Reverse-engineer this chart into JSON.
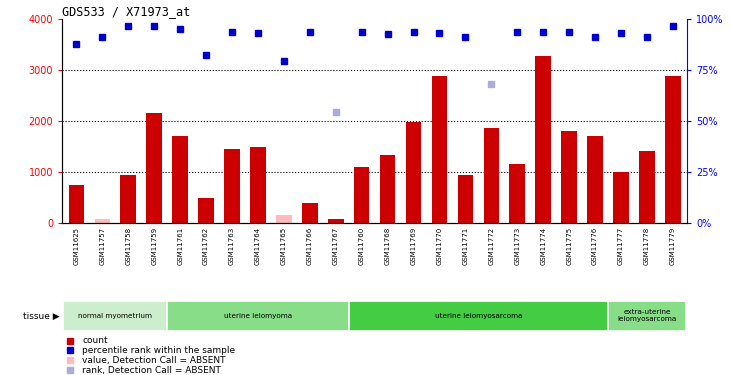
{
  "title": "GDS533 / X71973_at",
  "samples": [
    "GSM11625",
    "GSM11757",
    "GSM11758",
    "GSM11759",
    "GSM11761",
    "GSM11762",
    "GSM11763",
    "GSM11764",
    "GSM11765",
    "GSM11766",
    "GSM11767",
    "GSM11760",
    "GSM11768",
    "GSM11769",
    "GSM11770",
    "GSM11771",
    "GSM11772",
    "GSM11773",
    "GSM11774",
    "GSM11775",
    "GSM11776",
    "GSM11777",
    "GSM11778",
    "GSM11779"
  ],
  "counts": [
    750,
    80,
    950,
    2160,
    1700,
    500,
    1450,
    1490,
    160,
    390,
    80,
    1090,
    1340,
    1970,
    2870,
    950,
    1870,
    1160,
    3270,
    1810,
    1710,
    1000,
    1420,
    2870
  ],
  "absent_count_indices": [
    1,
    8
  ],
  "ranks": [
    3510,
    3640,
    3850,
    3850,
    3790,
    3300,
    3750,
    3730,
    3170,
    3750,
    2170,
    3750,
    3700,
    3750,
    3730,
    3640,
    2720,
    3750,
    3750,
    3750,
    3640,
    3730,
    3640,
    3850
  ],
  "absent_rank_indices": [
    10,
    16
  ],
  "ylim_left": [
    0,
    4000
  ],
  "ylim_right": [
    0,
    100
  ],
  "yticks_left": [
    0,
    1000,
    2000,
    3000,
    4000
  ],
  "yticks_right": [
    0,
    25,
    50,
    75,
    100
  ],
  "hlines": [
    1000,
    2000,
    3000
  ],
  "bar_color": "#cc0000",
  "bar_absent_color": "#ffbbbb",
  "rank_color": "#0000cc",
  "rank_absent_color": "#aaaadd",
  "label_bg_color": "#c8c8c8",
  "tissue_groups": [
    {
      "label": "normal myometrium",
      "start": 0,
      "end": 4,
      "color": "#cceecc"
    },
    {
      "label": "uterine leiomyoma",
      "start": 4,
      "end": 11,
      "color": "#88dd88"
    },
    {
      "label": "uterine leiomyosarcoma",
      "start": 11,
      "end": 21,
      "color": "#44cc44"
    },
    {
      "label": "extra-uterine\nleiomyosarcoma",
      "start": 21,
      "end": 24,
      "color": "#88dd88"
    }
  ],
  "legend_items": [
    {
      "color": "#cc0000",
      "label": "count"
    },
    {
      "color": "#0000cc",
      "label": "percentile rank within the sample"
    },
    {
      "color": "#ffbbbb",
      "label": "value, Detection Call = ABSENT"
    },
    {
      "color": "#aaaadd",
      "label": "rank, Detection Call = ABSENT"
    }
  ]
}
